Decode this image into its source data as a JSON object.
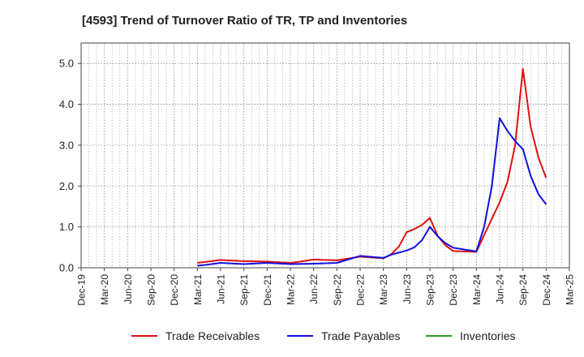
{
  "chart_data": {
    "type": "line",
    "title": "[4593]  Trend of Turnover Ratio of TR, TP and Inventories",
    "xlabel": "",
    "ylabel": "",
    "ylim": [
      0,
      5.5
    ],
    "yticks": [
      "0.0",
      "1.0",
      "2.0",
      "3.0",
      "4.0",
      "5.0"
    ],
    "x_tick_labels": [
      "Dec-19",
      "Mar-20",
      "Jun-20",
      "Sep-20",
      "Dec-20",
      "Mar-21",
      "Jun-21",
      "Sep-21",
      "Dec-21",
      "Mar-22",
      "Jun-22",
      "Sep-22",
      "Dec-22",
      "Mar-23",
      "Jun-23",
      "Sep-23",
      "Dec-23",
      "Mar-24",
      "Jun-24",
      "Sep-24",
      "Dec-24",
      "Mar-25"
    ],
    "grid": true,
    "legend_position": "bottom",
    "series": [
      {
        "name": "Trade Receivables",
        "color": "#e01010",
        "points": [
          {
            "x": "Mar-21",
            "y": 0.12
          },
          {
            "x": "Apr-21",
            "y": 0.14
          },
          {
            "x": "Jun-21",
            "y": 0.19
          },
          {
            "x": "Sep-21",
            "y": 0.16
          },
          {
            "x": "Dec-21",
            "y": 0.15
          },
          {
            "x": "Mar-22",
            "y": 0.12
          },
          {
            "x": "Apr-22",
            "y": 0.14
          },
          {
            "x": "Jun-22",
            "y": 0.2
          },
          {
            "x": "Sep-22",
            "y": 0.18
          },
          {
            "x": "Dec-22",
            "y": 0.27
          },
          {
            "x": "Mar-23",
            "y": 0.23
          },
          {
            "x": "Apr-23",
            "y": 0.33
          },
          {
            "x": "May-23",
            "y": 0.52
          },
          {
            "x": "Jun-23",
            "y": 0.87
          },
          {
            "x": "Jul-23",
            "y": 0.95
          },
          {
            "x": "Aug-23",
            "y": 1.05
          },
          {
            "x": "Sep-23",
            "y": 1.22
          },
          {
            "x": "Oct-23",
            "y": 0.78
          },
          {
            "x": "Nov-23",
            "y": 0.55
          },
          {
            "x": "Dec-23",
            "y": 0.41
          },
          {
            "x": "Mar-24",
            "y": 0.39
          },
          {
            "x": "Apr-24",
            "y": 0.8
          },
          {
            "x": "May-24",
            "y": 1.2
          },
          {
            "x": "Jun-24",
            "y": 1.6
          },
          {
            "x": "Jul-24",
            "y": 2.1
          },
          {
            "x": "Aug-24",
            "y": 3.0
          },
          {
            "x": "Sep-24",
            "y": 4.87
          },
          {
            "x": "Oct-24",
            "y": 3.45
          },
          {
            "x": "Nov-24",
            "y": 2.7
          },
          {
            "x": "Dec-24",
            "y": 2.2
          }
        ]
      },
      {
        "name": "Trade Payables",
        "color": "#1010e0",
        "points": [
          {
            "x": "Mar-21",
            "y": 0.05
          },
          {
            "x": "Apr-21",
            "y": 0.07
          },
          {
            "x": "Jun-21",
            "y": 0.12
          },
          {
            "x": "Sep-21",
            "y": 0.09
          },
          {
            "x": "Dec-21",
            "y": 0.12
          },
          {
            "x": "Mar-22",
            "y": 0.09
          },
          {
            "x": "Jun-22",
            "y": 0.1
          },
          {
            "x": "Sep-22",
            "y": 0.12
          },
          {
            "x": "Dec-22",
            "y": 0.29
          },
          {
            "x": "Mar-23",
            "y": 0.24
          },
          {
            "x": "Apr-23",
            "y": 0.32
          },
          {
            "x": "Jun-23",
            "y": 0.42
          },
          {
            "x": "Jul-23",
            "y": 0.5
          },
          {
            "x": "Aug-23",
            "y": 0.68
          },
          {
            "x": "Sep-23",
            "y": 1.0
          },
          {
            "x": "Oct-23",
            "y": 0.77
          },
          {
            "x": "Nov-23",
            "y": 0.6
          },
          {
            "x": "Dec-23",
            "y": 0.49
          },
          {
            "x": "Mar-24",
            "y": 0.4
          },
          {
            "x": "Apr-24",
            "y": 1.0
          },
          {
            "x": "May-24",
            "y": 2.0
          },
          {
            "x": "Jun-24",
            "y": 3.66
          },
          {
            "x": "Jul-24",
            "y": 3.35
          },
          {
            "x": "Aug-24",
            "y": 3.1
          },
          {
            "x": "Sep-24",
            "y": 2.9
          },
          {
            "x": "Oct-24",
            "y": 2.25
          },
          {
            "x": "Nov-24",
            "y": 1.8
          },
          {
            "x": "Dec-24",
            "y": 1.55
          }
        ]
      },
      {
        "name": "Inventories",
        "color": "#20a020",
        "points": []
      }
    ]
  }
}
